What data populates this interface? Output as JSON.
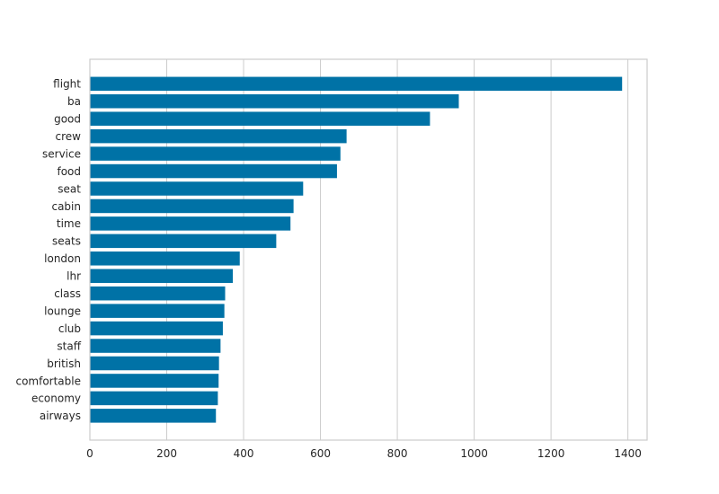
{
  "chart_data": {
    "type": "bar",
    "orientation": "horizontal",
    "title": "",
    "xlabel": "",
    "ylabel": "",
    "categories": [
      "flight",
      "ba",
      "good",
      "crew",
      "service",
      "food",
      "seat",
      "cabin",
      "time",
      "seats",
      "london",
      "lhr",
      "class",
      "lounge",
      "club",
      "staff",
      "british",
      "comfortable",
      "economy",
      "airways"
    ],
    "values": [
      1385,
      960,
      885,
      668,
      652,
      643,
      555,
      530,
      522,
      485,
      390,
      372,
      352,
      350,
      346,
      340,
      336,
      335,
      333,
      328
    ],
    "xlim": [
      0,
      1450
    ],
    "xticks": [
      0,
      200,
      400,
      600,
      800,
      1000,
      1200,
      1400
    ],
    "grid": true,
    "bar_color": "#0072a6"
  }
}
